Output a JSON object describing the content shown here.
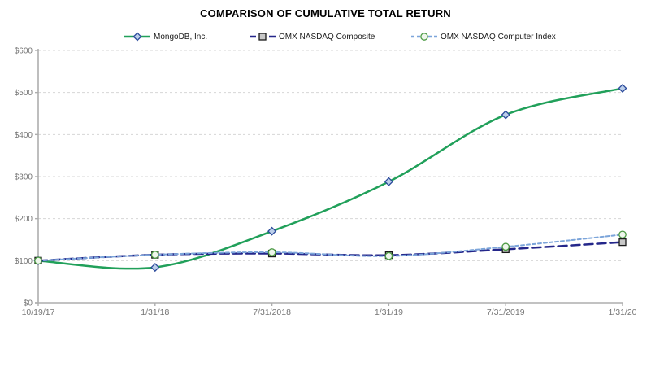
{
  "chart_data": {
    "type": "line",
    "title": "COMPARISON OF CUMULATIVE TOTAL RETURN",
    "categories": [
      "10/19/17",
      "1/31/18",
      "7/31/2018",
      "1/31/19",
      "7/31/2019",
      "1/31/20"
    ],
    "series": [
      {
        "name": "MongoDB, Inc.",
        "values": [
          100,
          84,
          170,
          288,
          447,
          510
        ],
        "color": "#21A05A",
        "line_style": "solid",
        "marker": "diamond",
        "marker_fill": "#BCCFEA",
        "marker_stroke": "#2B4A9B"
      },
      {
        "name": "OMX NASDAQ Composite",
        "values": [
          100,
          114,
          117,
          113,
          127,
          144
        ],
        "color": "#24268A",
        "line_style": "long-dash",
        "marker": "square",
        "marker_fill": "#C8C8C8",
        "marker_stroke": "#1A1A1A"
      },
      {
        "name": "OMX NASDAQ Computer Index",
        "values": [
          100,
          114,
          120,
          111,
          133,
          162
        ],
        "color": "#7CA5DA",
        "line_style": "short-dash",
        "marker": "circle",
        "marker_fill": "#EFF6EC",
        "marker_stroke": "#4D9B45"
      }
    ],
    "ylim": [
      0,
      600
    ],
    "y_tick_labels": [
      "$0",
      "$100",
      "$200",
      "$300",
      "$400",
      "$500",
      "$600"
    ],
    "grid": true,
    "smooth_lines": true,
    "legend_position": "top",
    "colors": {
      "axis": "#ADADAD",
      "gridline": "#D6D6D6",
      "tick_label": "#757575",
      "background": "#FFFFFF",
      "title_text": "#000000"
    }
  }
}
